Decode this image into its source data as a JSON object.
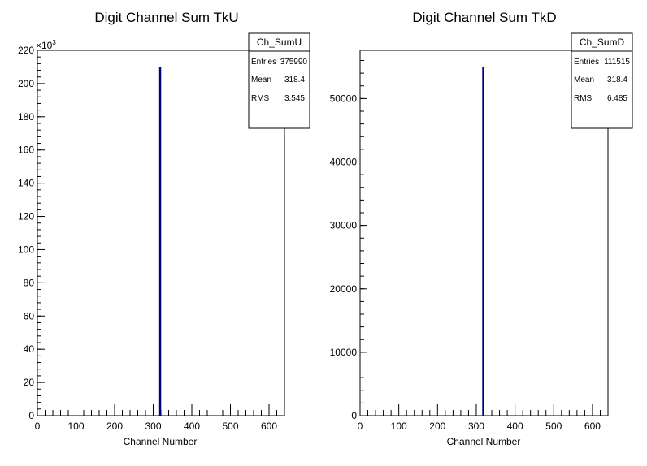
{
  "chart_data": [
    {
      "type": "histogram",
      "title": "Digit Channel Sum TkU",
      "xlabel": "Channel Number",
      "ylabel": "",
      "xlim": [
        0,
        640
      ],
      "ylim": [
        0,
        220000
      ],
      "x_ticks": [
        "0",
        "100",
        "200",
        "300",
        "400",
        "500",
        "600"
      ],
      "y_ticks": [
        "0",
        "20",
        "40",
        "60",
        "80",
        "100",
        "120",
        "140",
        "160",
        "180",
        "200",
        "220"
      ],
      "y_multiplier": "×10",
      "y_multiplier_exp": "3",
      "bins": [
        {
          "x": 318,
          "y": 210000
        }
      ],
      "line_color": "#000080",
      "stats": {
        "name": "Ch_SumU",
        "rows": [
          {
            "label": "Entries",
            "value": "375990"
          },
          {
            "label": "Mean",
            "value": "318.4"
          },
          {
            "label": "RMS",
            "value": "3.545"
          }
        ]
      }
    },
    {
      "type": "histogram",
      "title": "Digit Channel Sum TkD",
      "xlabel": "Channel Number",
      "ylabel": "",
      "xlim": [
        0,
        640
      ],
      "ylim": [
        0,
        57600
      ],
      "x_ticks": [
        "0",
        "100",
        "200",
        "300",
        "400",
        "500",
        "600"
      ],
      "y_ticks": [
        "0",
        "10000",
        "20000",
        "30000",
        "40000",
        "50000"
      ],
      "bins": [
        {
          "x": 318,
          "y": 55000
        }
      ],
      "line_color": "#000080",
      "stats": {
        "name": "Ch_SumD",
        "rows": [
          {
            "label": "Entries",
            "value": "111515"
          },
          {
            "label": "Mean",
            "value": "318.4"
          },
          {
            "label": "RMS",
            "value": "6.485"
          }
        ]
      }
    }
  ]
}
